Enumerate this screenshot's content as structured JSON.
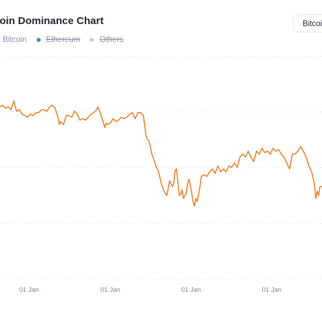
{
  "header": {
    "title": "tcoin Dominance Chart",
    "toggle_label": "Bitcoi"
  },
  "legend": [
    {
      "label": "Bitcoin",
      "color": "#f7931a",
      "hidden": false
    },
    {
      "label": "Ethereum",
      "color": "#5b87c6",
      "hidden": true
    },
    {
      "label": "Others",
      "color": "#c9cdd4",
      "hidden": true
    }
  ],
  "chart_data": {
    "type": "line",
    "title": "tcoin Dominance Chart",
    "xlabel": "",
    "ylabel": "",
    "grid": true,
    "legend_position": "top-left",
    "x_tick_labels": [
      "01 Jan",
      "01 Jan",
      "01 Jan",
      "01 Jan"
    ],
    "series": [
      {
        "name": "Bitcoin",
        "color": "#e8832a",
        "x": [
          0,
          4,
          8,
          12,
          16,
          20,
          24,
          28,
          32,
          36,
          40,
          44,
          48,
          52,
          56,
          60,
          64,
          68,
          72,
          76,
          80,
          84,
          86,
          88,
          92,
          96,
          100,
          104,
          108,
          112,
          116,
          120,
          124,
          128,
          132,
          136,
          140,
          142,
          144,
          148,
          152,
          154,
          156,
          160,
          164,
          168,
          172,
          176,
          180,
          184,
          188,
          192,
          196,
          200,
          204,
          208,
          212,
          214,
          216,
          218,
          220,
          222,
          226,
          230,
          234,
          238,
          242,
          246,
          250,
          252,
          254,
          256,
          258,
          260,
          262,
          264,
          266,
          268,
          270,
          272,
          274,
          276,
          278,
          280,
          282,
          284,
          286,
          288,
          290,
          292,
          296,
          300,
          304,
          308,
          312,
          316,
          320,
          324,
          328,
          332,
          336,
          340,
          344,
          348,
          352,
          356,
          360,
          364,
          368,
          372,
          376,
          380,
          384,
          388,
          392,
          396,
          400,
          404,
          408,
          412,
          416,
          420,
          424,
          428,
          432,
          436,
          440,
          444,
          448,
          452,
          456,
          458,
          460,
          462,
          464,
          467
        ],
        "y": [
          0.28,
          0.27,
          0.29,
          0.28,
          0.3,
          0.24,
          0.31,
          0.3,
          0.33,
          0.34,
          0.35,
          0.33,
          0.34,
          0.32,
          0.32,
          0.3,
          0.3,
          0.31,
          0.28,
          0.27,
          0.29,
          0.35,
          0.4,
          0.38,
          0.4,
          0.34,
          0.34,
          0.35,
          0.31,
          0.33,
          0.37,
          0.36,
          0.37,
          0.35,
          0.33,
          0.32,
          0.3,
          0.28,
          0.3,
          0.36,
          0.42,
          0.39,
          0.4,
          0.39,
          0.36,
          0.38,
          0.37,
          0.35,
          0.36,
          0.35,
          0.33,
          0.32,
          0.36,
          0.32,
          0.32,
          0.34,
          0.48,
          0.5,
          0.51,
          0.55,
          0.6,
          0.62,
          0.68,
          0.72,
          0.8,
          0.85,
          0.88,
          0.78,
          0.82,
          0.8,
          0.71,
          0.7,
          0.79,
          0.88,
          0.87,
          0.84,
          0.9,
          0.88,
          0.87,
          0.8,
          0.77,
          0.81,
          0.86,
          0.92,
          0.95,
          0.9,
          0.92,
          0.87,
          0.82,
          0.75,
          0.74,
          0.75,
          0.72,
          0.7,
          0.73,
          0.68,
          0.72,
          0.7,
          0.72,
          0.68,
          0.69,
          0.66,
          0.69,
          0.62,
          0.6,
          0.62,
          0.58,
          0.62,
          0.65,
          0.58,
          0.6,
          0.56,
          0.59,
          0.58,
          0.6,
          0.56,
          0.58,
          0.57,
          0.6,
          0.62,
          0.66,
          0.7,
          0.6,
          0.6,
          0.58,
          0.55,
          0.58,
          0.62,
          0.68,
          0.72,
          0.8,
          0.9,
          0.85,
          0.88,
          0.82,
          0.82
        ]
      }
    ]
  }
}
